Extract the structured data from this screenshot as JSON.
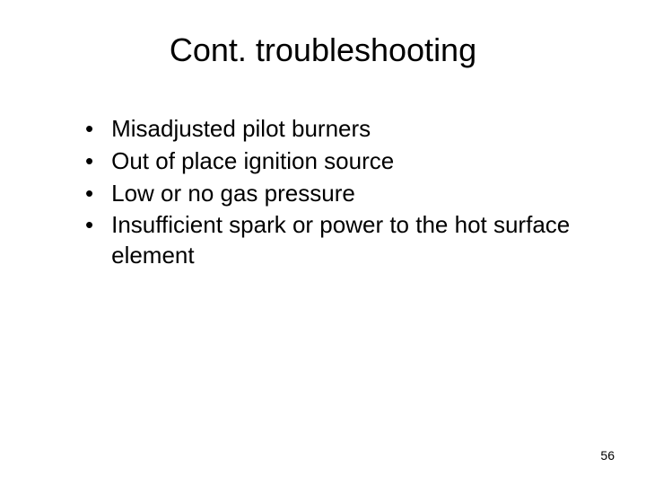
{
  "slide": {
    "title": "Cont. troubleshooting",
    "bullets": [
      "Misadjusted pilot burners",
      "Out of place ignition source",
      "Low or no gas pressure",
      "Insufficient spark or power to the hot surface element"
    ],
    "page_number": "56"
  },
  "styling": {
    "background_color": "#ffffff",
    "text_color": "#000000",
    "title_fontsize": 36,
    "body_fontsize": 26,
    "page_number_fontsize": 14,
    "font_family": "Arial"
  }
}
